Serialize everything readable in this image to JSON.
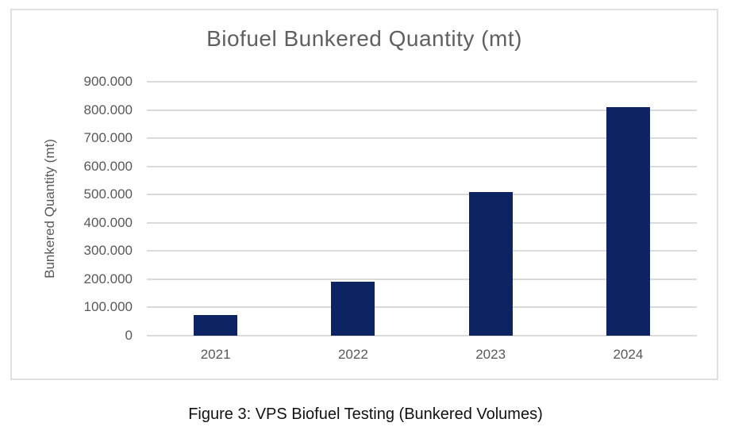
{
  "figure": {
    "caption": "Figure 3: VPS Biofuel Testing (Bunkered Volumes)"
  },
  "chart_data": {
    "type": "bar",
    "title": "Biofuel Bunkered Quantity (mt)",
    "xlabel": "",
    "ylabel": "Bunkered Quantity (mt)",
    "categories": [
      "2021",
      "2022",
      "2023",
      "2024"
    ],
    "values": [
      73000,
      190000,
      510000,
      810000
    ],
    "ylim": [
      0,
      900000
    ],
    "ytick_interval": 100000,
    "ytick_labels": [
      "0",
      "100.000",
      "200.000",
      "300.000",
      "400.000",
      "500.000",
      "600.000",
      "700.000",
      "800.000",
      "900.000"
    ],
    "grid": true,
    "legend": false,
    "colors": {
      "bar": "#0d2462",
      "gridline": "#dbdbdb",
      "axis_text": "#595959",
      "title_text": "#606060",
      "frame_border": "#e0e0e0",
      "caption_text": "#111111"
    }
  }
}
